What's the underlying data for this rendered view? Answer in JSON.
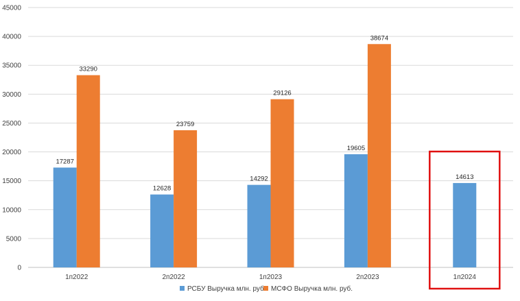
{
  "chart_data": {
    "type": "bar",
    "title": "",
    "xlabel": "",
    "ylabel": "",
    "ylim": [
      0,
      45000
    ],
    "yticks": [
      0,
      5000,
      10000,
      15000,
      20000,
      25000,
      30000,
      35000,
      40000,
      45000
    ],
    "grid": true,
    "legend_position": "bottom",
    "categories": [
      "1п2022",
      "2п2022",
      "1п2023",
      "2п2023",
      "1п2024"
    ],
    "series": [
      {
        "name": "РСБУ Выручка млн. руб.",
        "color": "#5B9BD5",
        "values": [
          17287,
          12628,
          14292,
          19605,
          14613
        ],
        "labels": [
          "17287",
          "12628",
          "14292",
          "19605",
          "14613"
        ]
      },
      {
        "name": "МСФО Выручка млн. руб.",
        "color": "#ED7D31",
        "values": [
          33290,
          23759,
          29126,
          38674,
          null
        ],
        "labels": [
          "33290",
          "23759",
          "29126",
          "38674",
          ""
        ]
      }
    ],
    "highlight": {
      "category_index": 4,
      "color": "#E01010"
    }
  }
}
